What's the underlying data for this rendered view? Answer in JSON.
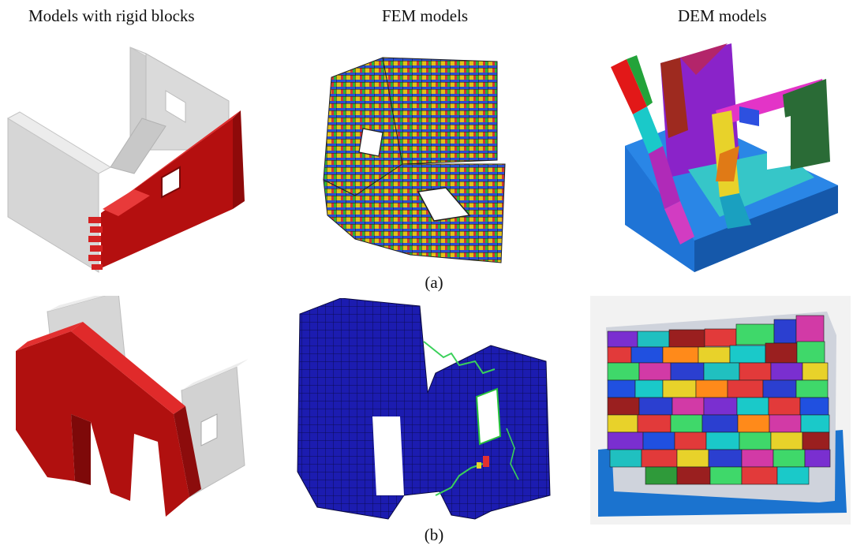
{
  "columns": {
    "rigid": "Models with rigid blocks",
    "fem": "FEM models",
    "dem": "DEM models"
  },
  "captions": {
    "a": "(a)",
    "b": "(b)"
  },
  "colors": {
    "rigid_red": "#b40f0f",
    "rigid_red_light": "#e23030",
    "ghost_grey": "#d2d2d2",
    "fem_blue": "#1a1aa8",
    "dem_base_blue": "#1e6fd0"
  }
}
